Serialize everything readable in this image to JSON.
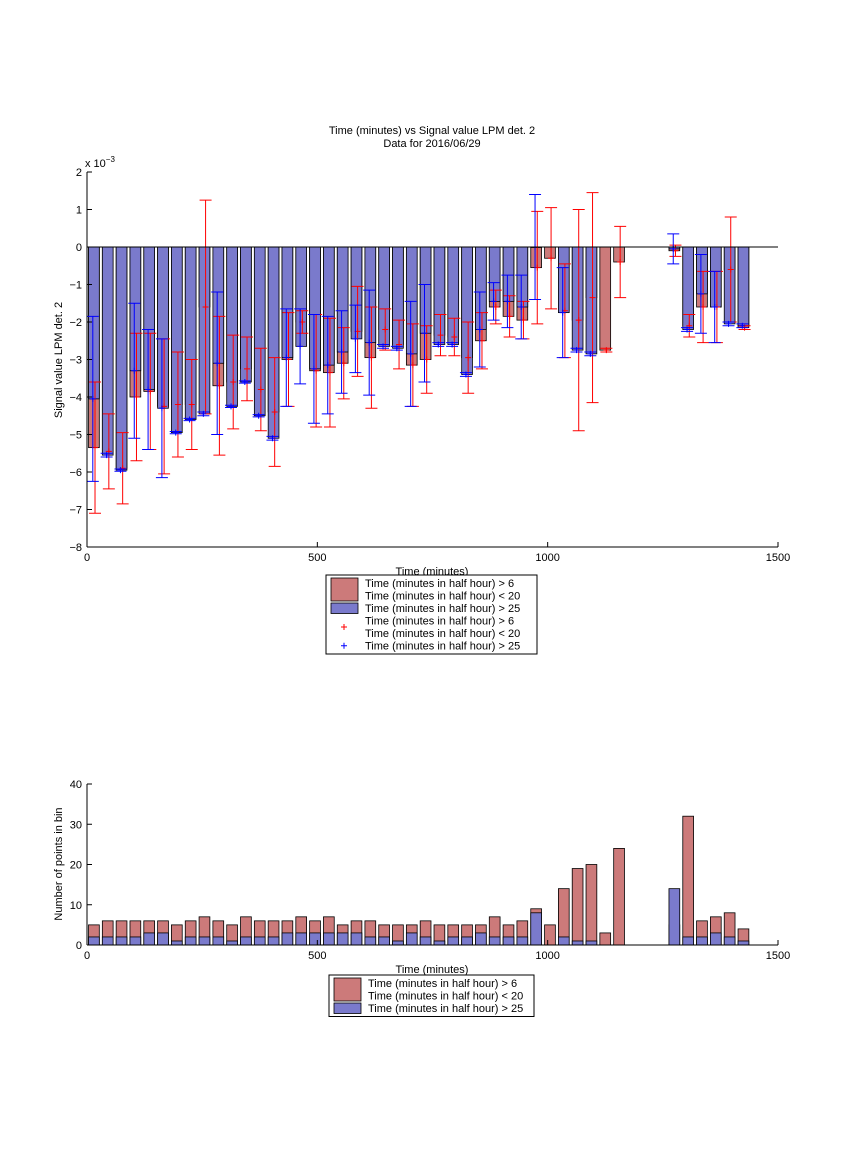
{
  "chart_data": [
    {
      "type": "bar",
      "title": "Time (minutes) vs Signal value LPM det. 2",
      "subtitle": "Data for 2016/06/29",
      "xlabel": "Time (minutes)",
      "ylabel": "Signal value LPM det. 2",
      "y_exponent_label": "x 10",
      "y_exponent_power": "−3",
      "xlim": [
        0,
        1500
      ],
      "ylim": [
        -8,
        2
      ],
      "xticks": [
        "0",
        "500",
        "1000",
        "1500"
      ],
      "yticks": [
        "−8",
        "−7",
        "−6",
        "−5",
        "−4",
        "−3",
        "−2",
        "−1",
        "0",
        "1",
        "2"
      ],
      "grid": false,
      "legend_position": "bottom-center-outside",
      "legend": [
        {
          "kind": "bar",
          "label_lines": [
            "Time (minutes in half hour) > 6",
            "Time (minutes in half hour) < 20"
          ],
          "color": "#cc7a7a"
        },
        {
          "kind": "bar",
          "label_lines": [
            "Time (minutes in half hour) > 25"
          ],
          "color": "#7a7acc"
        },
        {
          "kind": "marker",
          "label_lines": [
            "Time (minutes in half hour) > 6",
            "Time (minutes in half hour) < 20"
          ],
          "color": "#ff0000"
        },
        {
          "kind": "marker",
          "label_lines": [
            "Time (minutes in half hour) > 25"
          ],
          "color": "#0000ff"
        }
      ],
      "colors": {
        "red_fill": "#cc7a7a",
        "blue_fill": "#7a7acc",
        "red_err": "#ff0000",
        "blue_err": "#0000ff"
      },
      "series": [
        {
          "color": "#cc7a7a",
          "err_color": "#ff0000",
          "points": [
            {
              "x": 0,
              "y": -5.35,
              "err": 1.75
            },
            {
              "x": 30,
              "y": -5.45,
              "err": 1.0
            },
            {
              "x": 60,
              "y": -5.9,
              "err": 0.95
            },
            {
              "x": 90,
              "y": -4.0,
              "err": 1.7
            },
            {
              "x": 120,
              "y": -3.85,
              "err": 1.55
            },
            {
              "x": 150,
              "y": -4.25,
              "err": 1.8
            },
            {
              "x": 180,
              "y": -4.2,
              "err": 1.4
            },
            {
              "x": 210,
              "y": -4.2,
              "err": 1.2
            },
            {
              "x": 240,
              "y": -1.6,
              "err": 2.85
            },
            {
              "x": 270,
              "y": -3.7,
              "err": 1.85
            },
            {
              "x": 300,
              "y": -3.6,
              "err": 1.25
            },
            {
              "x": 330,
              "y": -3.25,
              "err": 0.85
            },
            {
              "x": 360,
              "y": -3.8,
              "err": 1.1
            },
            {
              "x": 390,
              "y": -4.4,
              "err": 1.45
            },
            {
              "x": 420,
              "y": -3.0,
              "err": 1.25
            },
            {
              "x": 450,
              "y": -2.0,
              "err": 0.3
            },
            {
              "x": 480,
              "y": -3.3,
              "err": 1.5
            },
            {
              "x": 510,
              "y": -3.35,
              "err": 1.45
            },
            {
              "x": 540,
              "y": -3.1,
              "err": 0.95
            },
            {
              "x": 570,
              "y": -2.25,
              "err": 1.2
            },
            {
              "x": 600,
              "y": -2.95,
              "err": 1.35
            },
            {
              "x": 630,
              "y": -2.2,
              "err": 0.55
            },
            {
              "x": 660,
              "y": -2.6,
              "err": 0.65
            },
            {
              "x": 690,
              "y": -3.15,
              "err": 1.1
            },
            {
              "x": 720,
              "y": -3.0,
              "err": 0.9
            },
            {
              "x": 750,
              "y": -2.35,
              "err": 0.55
            },
            {
              "x": 780,
              "y": -2.4,
              "err": 0.5
            },
            {
              "x": 810,
              "y": -2.95,
              "err": 0.95
            },
            {
              "x": 840,
              "y": -2.5,
              "err": 0.75
            },
            {
              "x": 870,
              "y": -1.6,
              "err": 0.45
            },
            {
              "x": 900,
              "y": -1.85,
              "err": 0.55
            },
            {
              "x": 930,
              "y": -1.95,
              "err": 0.5
            },
            {
              "x": 960,
              "y": -0.55,
              "err": 1.5
            },
            {
              "x": 990,
              "y": -0.3,
              "err": 1.35
            },
            {
              "x": 1020,
              "y": -1.7,
              "err": 1.25
            },
            {
              "x": 1050,
              "y": -1.95,
              "err": 2.95
            },
            {
              "x": 1080,
              "y": -1.35,
              "err": 2.8
            },
            {
              "x": 1110,
              "y": -2.75,
              "err": 0.05
            },
            {
              "x": 1140,
              "y": -0.4,
              "err": 0.95
            },
            {
              "x": 1260,
              "y": -0.1,
              "err": 0.15
            },
            {
              "x": 1290,
              "y": -2.1,
              "err": 0.3
            },
            {
              "x": 1320,
              "y": -1.6,
              "err": 0.95
            },
            {
              "x": 1350,
              "y": -1.6,
              "err": 0.95
            },
            {
              "x": 1380,
              "y": -0.6,
              "err": 1.4
            },
            {
              "x": 1410,
              "y": -2.15,
              "err": 0.05
            }
          ]
        },
        {
          "color": "#7a7acc",
          "err_color": "#0000ff",
          "points": [
            {
              "x": 0,
              "y": -4.05,
              "err": 2.2
            },
            {
              "x": 30,
              "y": -5.55,
              "err": 0.05
            },
            {
              "x": 60,
              "y": -5.95,
              "err": 0.03
            },
            {
              "x": 90,
              "y": -3.3,
              "err": 1.8
            },
            {
              "x": 120,
              "y": -3.8,
              "err": 1.6
            },
            {
              "x": 150,
              "y": -4.3,
              "err": 1.85
            },
            {
              "x": 180,
              "y": -4.95,
              "err": 0.03
            },
            {
              "x": 210,
              "y": -4.6,
              "err": 0.03
            },
            {
              "x": 240,
              "y": -4.45,
              "err": 0.05
            },
            {
              "x": 270,
              "y": -3.1,
              "err": 1.9
            },
            {
              "x": 300,
              "y": -4.25,
              "err": 0.03
            },
            {
              "x": 330,
              "y": -3.6,
              "err": 0.03
            },
            {
              "x": 360,
              "y": -4.5,
              "err": 0.03
            },
            {
              "x": 390,
              "y": -5.1,
              "err": 0.05
            },
            {
              "x": 420,
              "y": -2.95,
              "err": 1.3
            },
            {
              "x": 450,
              "y": -2.65,
              "err": 1.0
            },
            {
              "x": 480,
              "y": -3.25,
              "err": 1.45
            },
            {
              "x": 510,
              "y": -3.15,
              "err": 1.3
            },
            {
              "x": 540,
              "y": -2.8,
              "err": 1.1
            },
            {
              "x": 570,
              "y": -2.45,
              "err": 0.9
            },
            {
              "x": 600,
              "y": -2.55,
              "err": 1.4
            },
            {
              "x": 630,
              "y": -2.65,
              "err": 0.05
            },
            {
              "x": 660,
              "y": -2.7,
              "err": 0.05
            },
            {
              "x": 690,
              "y": -2.85,
              "err": 1.4
            },
            {
              "x": 720,
              "y": -2.3,
              "err": 1.3
            },
            {
              "x": 750,
              "y": -2.6,
              "err": 0.05
            },
            {
              "x": 780,
              "y": -2.6,
              "err": 0.05
            },
            {
              "x": 810,
              "y": -3.4,
              "err": 0.05
            },
            {
              "x": 840,
              "y": -2.2,
              "err": 1.0
            },
            {
              "x": 870,
              "y": -1.45,
              "err": 0.5
            },
            {
              "x": 900,
              "y": -1.45,
              "err": 0.7
            },
            {
              "x": 930,
              "y": -1.6,
              "err": 0.85
            },
            {
              "x": 960,
              "y": 0.0,
              "err": 1.4
            },
            {
              "x": 1020,
              "y": -1.75,
              "err": 1.2
            },
            {
              "x": 1050,
              "y": -2.75,
              "err": 0.05
            },
            {
              "x": 1080,
              "y": -2.85,
              "err": 0.05
            },
            {
              "x": 1260,
              "y": -0.05,
              "err": 0.4
            },
            {
              "x": 1290,
              "y": -2.2,
              "err": 0.05
            },
            {
              "x": 1320,
              "y": -1.25,
              "err": 1.05
            },
            {
              "x": 1350,
              "y": -1.6,
              "err": 0.95
            },
            {
              "x": 1380,
              "y": -2.05,
              "err": 0.05
            },
            {
              "x": 1410,
              "y": -2.1,
              "err": 0.05
            }
          ]
        }
      ]
    },
    {
      "type": "bar",
      "title": "",
      "xlabel": "Time (minutes)",
      "ylabel": "Number of points in bin",
      "xlim": [
        0,
        1500
      ],
      "ylim": [
        0,
        40
      ],
      "xticks": [
        "0",
        "500",
        "1000",
        "1500"
      ],
      "yticks": [
        "0",
        "10",
        "20",
        "30",
        "40"
      ],
      "grid": false,
      "legend_position": "bottom-center-outside",
      "legend": [
        {
          "kind": "bar",
          "label_lines": [
            "Time (minutes in half hour) > 6",
            "Time (minutes in half hour) < 20"
          ],
          "color": "#cc7a7a"
        },
        {
          "kind": "bar",
          "label_lines": [
            "Time (minutes in half hour) > 25"
          ],
          "color": "#7a7acc"
        }
      ],
      "series": [
        {
          "color": "#cc7a7a",
          "points": [
            {
              "x": 0,
              "y": 5
            },
            {
              "x": 30,
              "y": 6
            },
            {
              "x": 60,
              "y": 6
            },
            {
              "x": 90,
              "y": 6
            },
            {
              "x": 120,
              "y": 6
            },
            {
              "x": 150,
              "y": 6
            },
            {
              "x": 180,
              "y": 5
            },
            {
              "x": 210,
              "y": 6
            },
            {
              "x": 240,
              "y": 7
            },
            {
              "x": 270,
              "y": 6
            },
            {
              "x": 300,
              "y": 5
            },
            {
              "x": 330,
              "y": 7
            },
            {
              "x": 360,
              "y": 6
            },
            {
              "x": 390,
              "y": 6
            },
            {
              "x": 420,
              "y": 6
            },
            {
              "x": 450,
              "y": 7
            },
            {
              "x": 480,
              "y": 6
            },
            {
              "x": 510,
              "y": 7
            },
            {
              "x": 540,
              "y": 5
            },
            {
              "x": 570,
              "y": 6
            },
            {
              "x": 600,
              "y": 6
            },
            {
              "x": 630,
              "y": 5
            },
            {
              "x": 660,
              "y": 5
            },
            {
              "x": 690,
              "y": 5
            },
            {
              "x": 720,
              "y": 6
            },
            {
              "x": 750,
              "y": 5
            },
            {
              "x": 780,
              "y": 5
            },
            {
              "x": 810,
              "y": 5
            },
            {
              "x": 840,
              "y": 5
            },
            {
              "x": 870,
              "y": 7
            },
            {
              "x": 900,
              "y": 5
            },
            {
              "x": 930,
              "y": 6
            },
            {
              "x": 960,
              "y": 9
            },
            {
              "x": 990,
              "y": 5
            },
            {
              "x": 1020,
              "y": 14
            },
            {
              "x": 1050,
              "y": 19
            },
            {
              "x": 1080,
              "y": 20
            },
            {
              "x": 1110,
              "y": 3
            },
            {
              "x": 1140,
              "y": 24
            },
            {
              "x": 1260,
              "y": 5
            },
            {
              "x": 1290,
              "y": 32
            },
            {
              "x": 1320,
              "y": 6
            },
            {
              "x": 1350,
              "y": 7
            },
            {
              "x": 1380,
              "y": 8
            },
            {
              "x": 1410,
              "y": 4
            }
          ]
        },
        {
          "color": "#7a7acc",
          "points": [
            {
              "x": 0,
              "y": 2
            },
            {
              "x": 30,
              "y": 2
            },
            {
              "x": 60,
              "y": 2
            },
            {
              "x": 90,
              "y": 2
            },
            {
              "x": 120,
              "y": 3
            },
            {
              "x": 150,
              "y": 3
            },
            {
              "x": 180,
              "y": 1
            },
            {
              "x": 210,
              "y": 2
            },
            {
              "x": 240,
              "y": 2
            },
            {
              "x": 270,
              "y": 2
            },
            {
              "x": 300,
              "y": 1
            },
            {
              "x": 330,
              "y": 2
            },
            {
              "x": 360,
              "y": 2
            },
            {
              "x": 390,
              "y": 2
            },
            {
              "x": 420,
              "y": 3
            },
            {
              "x": 450,
              "y": 3
            },
            {
              "x": 480,
              "y": 3
            },
            {
              "x": 510,
              "y": 3
            },
            {
              "x": 540,
              "y": 3
            },
            {
              "x": 570,
              "y": 3
            },
            {
              "x": 600,
              "y": 2
            },
            {
              "x": 630,
              "y": 2
            },
            {
              "x": 660,
              "y": 1
            },
            {
              "x": 690,
              "y": 3
            },
            {
              "x": 720,
              "y": 2
            },
            {
              "x": 750,
              "y": 1
            },
            {
              "x": 780,
              "y": 2
            },
            {
              "x": 810,
              "y": 2
            },
            {
              "x": 840,
              "y": 3
            },
            {
              "x": 870,
              "y": 2
            },
            {
              "x": 900,
              "y": 2
            },
            {
              "x": 930,
              "y": 2
            },
            {
              "x": 960,
              "y": 8
            },
            {
              "x": 1020,
              "y": 2
            },
            {
              "x": 1050,
              "y": 1
            },
            {
              "x": 1080,
              "y": 1
            },
            {
              "x": 1260,
              "y": 14
            },
            {
              "x": 1290,
              "y": 2
            },
            {
              "x": 1320,
              "y": 2
            },
            {
              "x": 1350,
              "y": 3
            },
            {
              "x": 1380,
              "y": 2
            },
            {
              "x": 1410,
              "y": 1
            }
          ]
        }
      ]
    }
  ]
}
